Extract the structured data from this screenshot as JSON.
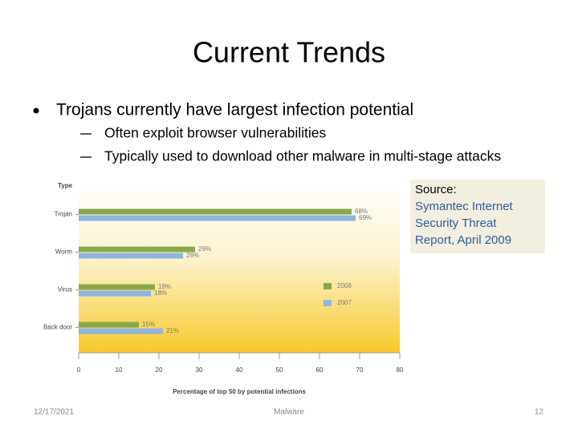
{
  "title": "Current Trends",
  "bullets": {
    "main": "Trojans currently have largest infection potential",
    "subs": [
      "Often exploit browser vulnerabilities",
      "Typically used to download other malware in multi-stage attacks"
    ]
  },
  "source": {
    "label": "Source:",
    "lines": [
      "Symantec Internet",
      "Security Threat",
      "Report, April 2009"
    ]
  },
  "footer": {
    "date": "12/17/2021",
    "center": "Malware",
    "page": "12"
  },
  "chart_data": {
    "type": "hbar",
    "y_label": "Type",
    "x_label": "Percentage of top 50 by potential infections",
    "categories": [
      "Trojan",
      "Worm",
      "Virus",
      "Back door"
    ],
    "series": [
      {
        "name": "2008",
        "color": "#8aa84a",
        "values": [
          68,
          29,
          19,
          15
        ],
        "value_labels": [
          "68%",
          "29%",
          "19%",
          "15%"
        ]
      },
      {
        "name": "2007",
        "color": "#8fb4de",
        "values": [
          69,
          26,
          18,
          21
        ],
        "value_labels": [
          "69%",
          "26%",
          "18%",
          "21%"
        ]
      }
    ],
    "xlim": [
      0,
      80
    ],
    "xticks": [
      0,
      10,
      20,
      30,
      40,
      50,
      60,
      70,
      80
    ],
    "legend": "right"
  }
}
